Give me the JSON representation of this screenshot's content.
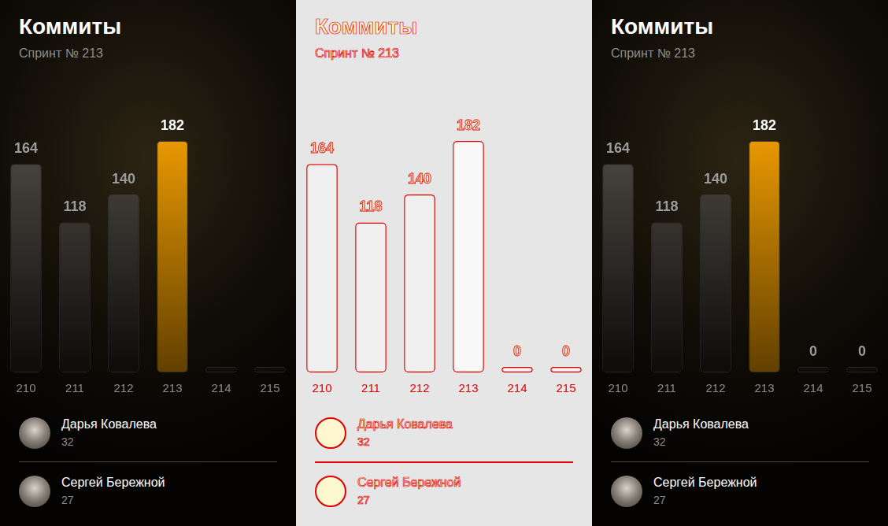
{
  "chart_data": [
    {
      "type": "bar",
      "title": "Коммиты",
      "subtitle": "Спринт № 213",
      "categories": [
        "210",
        "211",
        "212",
        "213",
        "214",
        "215"
      ],
      "values": [
        164,
        118,
        140,
        182,
        0,
        0
      ],
      "value_labels": [
        "164",
        "118",
        "140",
        "182",
        null,
        null
      ],
      "colors": [
        "#33312d",
        "#33312d",
        "#33312d",
        "#f5a000",
        "#33312d",
        "#33312d"
      ],
      "ylim": [
        0,
        200
      ],
      "grid": false,
      "tick_labels": "x",
      "data_labels": true
    },
    {
      "type": "bar",
      "title": "Коммиты",
      "subtitle": "Спринт № 213",
      "categories": [
        "210",
        "211",
        "212",
        "213",
        "214",
        "215"
      ],
      "values": [
        164,
        118,
        140,
        182,
        0,
        0
      ],
      "colors": [
        "#f0f0f0",
        "#f0f0f0",
        "#f0f0f0",
        "#f8f8f8",
        "#f0f0f0",
        "#f0f0f0"
      ],
      "ylim": [
        0,
        200
      ],
      "grid": false,
      "tick_labels": "x",
      "data_labels": true
    },
    {
      "type": "bar",
      "title": "Коммиты",
      "subtitle": "Спринт № 213",
      "categories": [
        "210",
        "211",
        "212",
        "213",
        "214",
        "215"
      ],
      "values": [
        164,
        118,
        140,
        182,
        0,
        0
      ],
      "colors": [
        "#33312d",
        "#33312d",
        "#33312d",
        "#f5a000",
        "#33312d",
        "#33312d"
      ],
      "ylim": [
        0,
        200
      ],
      "grid": false,
      "tick_labels": "x",
      "data_labels": true
    }
  ],
  "people": [
    {
      "name": "Дарья Ковалева",
      "commits": 32
    },
    {
      "name": "Сергей Бережной",
      "commits": 27
    }
  ]
}
